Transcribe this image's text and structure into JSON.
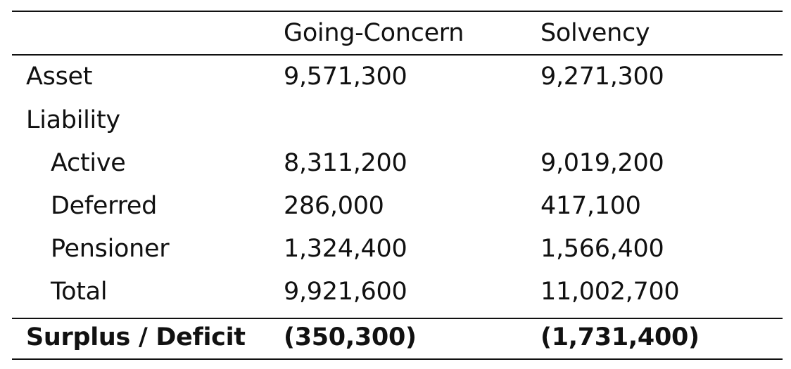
{
  "table": {
    "columns": [
      "",
      "Going-Concern",
      "Solvency"
    ],
    "rows": [
      {
        "label": "Asset",
        "going_concern": "9,571,300",
        "solvency": "9,271,300"
      },
      {
        "label": "Liability",
        "going_concern": "",
        "solvency": ""
      },
      {
        "label": "Active",
        "going_concern": "8,311,200",
        "solvency": "9,019,200"
      },
      {
        "label": "Deferred",
        "going_concern": "286,000",
        "solvency": "417,100"
      },
      {
        "label": "Pensioner",
        "going_concern": "1,324,400",
        "solvency": "1,566,400"
      },
      {
        "label": "Total",
        "going_concern": "9,921,600",
        "solvency": "11,002,700"
      }
    ],
    "summary": {
      "label": "Surplus / Deficit",
      "going_concern": "(350,300)",
      "solvency": "(1,731,400)"
    }
  }
}
